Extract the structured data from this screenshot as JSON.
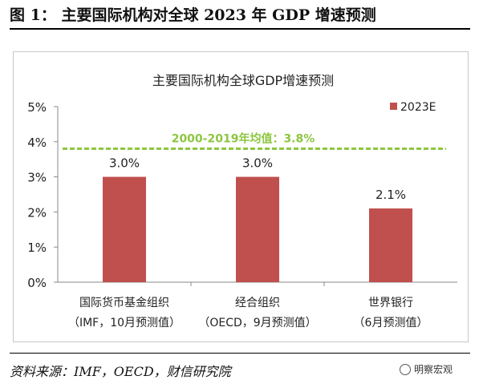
{
  "figure": {
    "title": "图 1： 主要国际机构对全球 2023 年 GDP 增速预测",
    "source": "资料来源：IMF，OECD，财信研究院",
    "watermark": "明察宏观"
  },
  "chart_data": {
    "type": "bar",
    "title": "主要国际机构全球GDP增速预测",
    "categories": [
      [
        "国际货币基金组织",
        "（IMF，10月预测值）"
      ],
      [
        "经合组织",
        "（OECD，9月预测值）"
      ],
      [
        "世界银行",
        "（6月预测值）"
      ]
    ],
    "series": [
      {
        "name": "2023E",
        "values": [
          3.0,
          3.0,
          2.1
        ],
        "labels": [
          "3.0%",
          "3.0%",
          "2.1%"
        ],
        "color": "#C0504D"
      }
    ],
    "ylim": [
      0,
      5
    ],
    "yticks": [
      "0%",
      "1%",
      "2%",
      "3%",
      "4%",
      "5%"
    ],
    "reference_line": {
      "value": 3.8,
      "label": "2000-2019年均值：3.8%",
      "color": "#8DC63F",
      "style": "dashed"
    },
    "legend_position": "top-right",
    "grid": false
  }
}
